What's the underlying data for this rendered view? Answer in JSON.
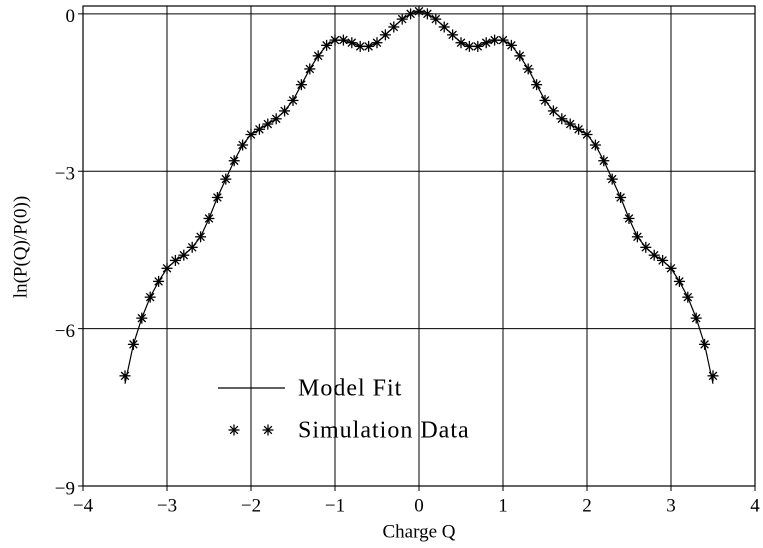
{
  "chart_data": {
    "type": "line",
    "xlabel": "Charge Q",
    "ylabel": "ln(P(Q)/P(0))",
    "xlim": [
      -4,
      4
    ],
    "ylim": [
      -9,
      0.15
    ],
    "xticks": [
      {
        "value": -4,
        "label": "−4"
      },
      {
        "value": -3,
        "label": "−3"
      },
      {
        "value": -2,
        "label": "−2"
      },
      {
        "value": -1,
        "label": "−1"
      },
      0,
      1,
      2,
      3,
      4
    ],
    "yticks": [
      0,
      {
        "value": -3,
        "label": "−3"
      },
      {
        "value": -6,
        "label": "−6"
      },
      {
        "value": -9,
        "label": "−9"
      }
    ],
    "grid": true,
    "legend": "bottom-left",
    "x": [
      -3.5,
      -3.4,
      -3.3,
      -3.2,
      -3.1,
      -3.0,
      -2.9,
      -2.8,
      -2.7,
      -2.6,
      -2.5,
      -2.4,
      -2.3,
      -2.2,
      -2.1,
      -2.0,
      -1.9,
      -1.8,
      -1.7,
      -1.6,
      -1.5,
      -1.4,
      -1.3,
      -1.2,
      -1.1,
      -1.0,
      -0.9,
      -0.8,
      -0.7,
      -0.6,
      -0.5,
      -0.4,
      -0.3,
      -0.2,
      -0.1,
      0,
      0.1,
      0.2,
      0.3,
      0.4,
      0.5,
      0.6,
      0.7,
      0.8,
      0.9,
      1.0,
      1.1,
      1.2,
      1.3,
      1.4,
      1.5,
      1.6,
      1.7,
      1.8,
      1.9,
      2.0,
      2.1,
      2.2,
      2.3,
      2.4,
      2.5,
      2.6,
      2.7,
      2.8,
      2.9,
      3.0,
      3.1,
      3.2,
      3.3,
      3.4,
      3.5
    ],
    "series": [
      {
        "name": "Model Fit",
        "color": "#000000",
        "style": "line",
        "values": [
          -7.05,
          -6.3,
          -5.8,
          -5.4,
          -5.1,
          -4.85,
          -4.7,
          -4.6,
          -4.45,
          -4.25,
          -3.9,
          -3.5,
          -3.15,
          -2.8,
          -2.5,
          -2.3,
          -2.2,
          -2.1,
          -2.0,
          -1.85,
          -1.65,
          -1.35,
          -1.05,
          -0.8,
          -0.6,
          -0.5,
          -0.5,
          -0.55,
          -0.62,
          -0.62,
          -0.55,
          -0.4,
          -0.25,
          -0.1,
          0.0,
          0.05,
          0.0,
          -0.1,
          -0.25,
          -0.4,
          -0.55,
          -0.62,
          -0.62,
          -0.55,
          -0.5,
          -0.5,
          -0.6,
          -0.8,
          -1.05,
          -1.35,
          -1.65,
          -1.85,
          -2.0,
          -2.1,
          -2.2,
          -2.3,
          -2.5,
          -2.8,
          -3.15,
          -3.5,
          -3.9,
          -4.25,
          -4.45,
          -4.6,
          -4.7,
          -4.85,
          -5.1,
          -5.4,
          -5.8,
          -6.3,
          -7.05
        ]
      },
      {
        "name": "Simulation Data",
        "color": "#000000",
        "style": "asterisk",
        "values": [
          -6.9,
          -6.3,
          -5.8,
          -5.4,
          -5.1,
          -4.85,
          -4.7,
          -4.6,
          -4.45,
          -4.25,
          -3.9,
          -3.5,
          -3.15,
          -2.8,
          -2.5,
          -2.3,
          -2.2,
          -2.1,
          -2.0,
          -1.85,
          -1.65,
          -1.35,
          -1.05,
          -0.8,
          -0.6,
          -0.5,
          -0.5,
          -0.55,
          -0.62,
          -0.62,
          -0.55,
          -0.4,
          -0.25,
          -0.1,
          0.0,
          0.05,
          0.0,
          -0.1,
          -0.25,
          -0.4,
          -0.55,
          -0.62,
          -0.62,
          -0.55,
          -0.5,
          -0.5,
          -0.6,
          -0.8,
          -1.05,
          -1.35,
          -1.65,
          -1.85,
          -2.0,
          -2.1,
          -2.2,
          -2.3,
          -2.5,
          -2.8,
          -3.15,
          -3.5,
          -3.9,
          -4.25,
          -4.45,
          -4.6,
          -4.7,
          -4.85,
          -5.1,
          -5.4,
          -5.8,
          -6.3,
          -6.9
        ]
      }
    ]
  }
}
